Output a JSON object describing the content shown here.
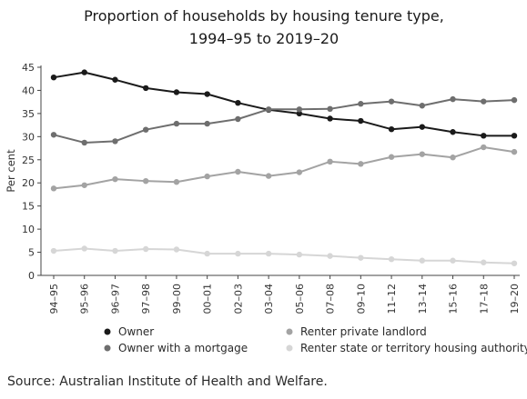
{
  "chart_data": {
    "type": "line",
    "title_lines": [
      "Proportion of households by housing tenure type,",
      "1994–95 to 2019–20"
    ],
    "ylabel": "Per cent",
    "xlabel": "",
    "ylim": [
      0,
      45
    ],
    "yticks": [
      0,
      5,
      10,
      15,
      20,
      25,
      30,
      35,
      40,
      45
    ],
    "grid": false,
    "legend_position": "bottom",
    "categories": [
      "94–95",
      "95–96",
      "96–97",
      "97–98",
      "99–00",
      "00–01",
      "02–03",
      "03–04",
      "05–06",
      "07–08",
      "09–10",
      "11–12",
      "13–14",
      "15–16",
      "17–18",
      "19–20"
    ],
    "series": [
      {
        "name": "Owner",
        "color": "#1a1a1a",
        "values": [
          42.8,
          43.9,
          42.3,
          40.5,
          39.6,
          39.2,
          37.3,
          35.8,
          35.0,
          33.9,
          33.4,
          31.6,
          32.1,
          31.0,
          30.2,
          30.2
        ]
      },
      {
        "name": "Owner with a mortgage",
        "color": "#6e6e6e",
        "values": [
          30.4,
          28.7,
          29.0,
          31.5,
          32.8,
          32.8,
          33.8,
          35.9,
          35.9,
          36.0,
          37.1,
          37.6,
          36.7,
          38.1,
          37.6,
          37.9
        ]
      },
      {
        "name": "Renter private landlord",
        "color": "#a3a3a3",
        "values": [
          18.8,
          19.5,
          20.8,
          20.4,
          20.2,
          21.4,
          22.4,
          21.5,
          22.3,
          24.6,
          24.1,
          25.6,
          26.2,
          25.5,
          27.7,
          26.7
        ]
      },
      {
        "name": "Renter state or territory housing authority",
        "color": "#d6d6d6",
        "values": [
          5.3,
          5.8,
          5.3,
          5.7,
          5.6,
          4.7,
          4.7,
          4.7,
          4.5,
          4.2,
          3.8,
          3.5,
          3.2,
          3.2,
          2.8,
          2.6
        ]
      }
    ]
  },
  "source": "Source: Australian Institute of Health and Welfare."
}
